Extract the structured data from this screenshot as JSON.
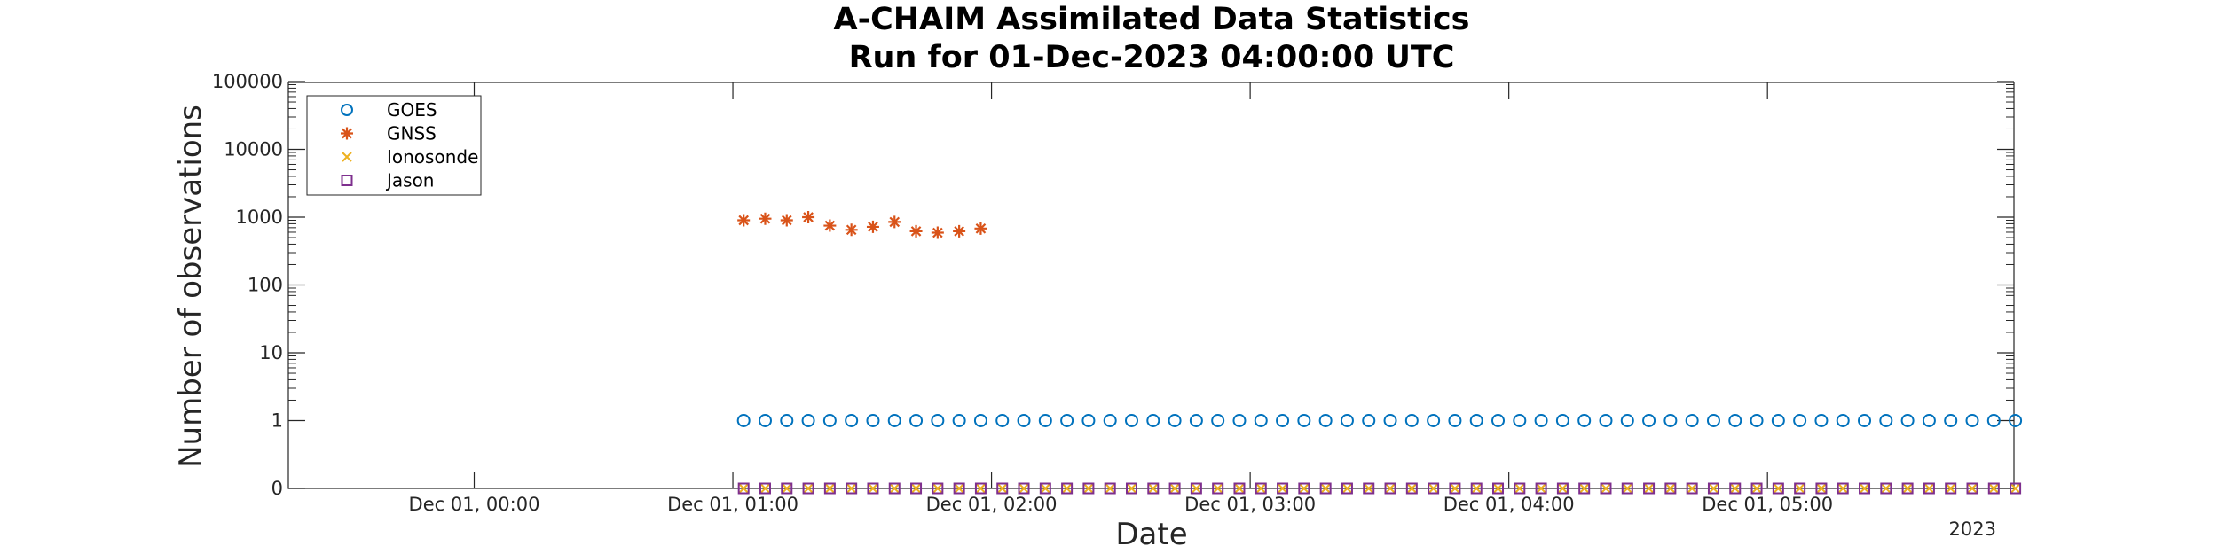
{
  "chart_data": {
    "type": "scatter",
    "title_lines": [
      "A-CHAIM Assimilated Data Statistics",
      "Run for 01-Dec-2023 04:00:00 UTC"
    ],
    "xlabel": "Date",
    "ylabel": "Number of observations",
    "year_label": "2023",
    "x_unit": "minutes after 2023-12-01 00:00 UTC",
    "xlim": [
      -50,
      350
    ],
    "x_ticks": [
      {
        "value": 0,
        "label": "Dec 01, 00:00"
      },
      {
        "value": 60,
        "label": "Dec 01, 01:00"
      },
      {
        "value": 120,
        "label": "Dec 01, 02:00"
      },
      {
        "value": 180,
        "label": "Dec 01, 03:00"
      },
      {
        "value": 240,
        "label": "Dec 01, 04:00"
      },
      {
        "value": 300,
        "label": "Dec 01, 05:00"
      }
    ],
    "y_scale": "log (with 0 shown at bottom)",
    "y_ticks": [
      "0",
      "1",
      "10",
      "100",
      "1000",
      "10000",
      "100000"
    ],
    "grid": false,
    "legend": {
      "position": "top-left",
      "entries": [
        {
          "name": "GOES",
          "marker": "circle",
          "color": "#0072BD"
        },
        {
          "name": "GNSS",
          "marker": "asterisk",
          "color": "#D95319"
        },
        {
          "name": "Ionosonde",
          "marker": "x",
          "color": "#EDB120"
        },
        {
          "name": "Jason",
          "marker": "square",
          "color": "#7E2F8E"
        }
      ]
    },
    "series": [
      {
        "name": "GOES",
        "x_start": 62.5,
        "x_step": 5,
        "count": 60,
        "value": 1
      },
      {
        "name": "GNSS",
        "x": [
          62.5,
          67.5,
          72.5,
          77.5,
          82.5,
          87.5,
          92.5,
          97.5,
          102.5,
          107.5,
          112.5,
          117.5
        ],
        "values": [
          900,
          950,
          900,
          1000,
          750,
          650,
          720,
          850,
          620,
          590,
          620,
          680
        ]
      },
      {
        "name": "Ionosonde",
        "x_start": 62.5,
        "x_step": 5,
        "count": 60,
        "value": 0
      },
      {
        "name": "Jason",
        "x_start": 62.5,
        "x_step": 5,
        "count": 60,
        "value": 0
      }
    ]
  }
}
